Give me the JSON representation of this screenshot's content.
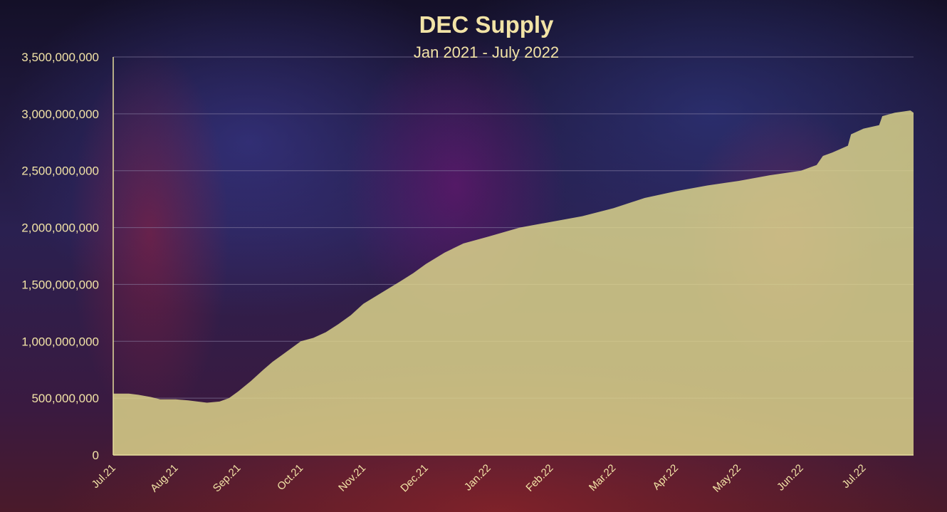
{
  "chart_data": {
    "type": "area",
    "title": "DEC Supply",
    "subtitle": "Jan 2021 - July 2022",
    "xlabel": "",
    "ylabel": "",
    "ylim": [
      0,
      3500000000
    ],
    "ytick_values": [
      0,
      500000000,
      1000000000,
      1500000000,
      2000000000,
      2500000000,
      3000000000,
      3500000000
    ],
    "ytick_labels": [
      "0",
      "500,000,000",
      "1,000,000,000",
      "1,500,000,000",
      "2,000,000,000",
      "2,500,000,000",
      "3,000,000,000",
      "3,500,000,000"
    ],
    "xtick_labels": [
      "Jul.21",
      "Aug.21",
      "Sep.21",
      "Oct.21",
      "Nov.21",
      "Dec.21",
      "Jan.22",
      "Feb.22",
      "Mar.22",
      "Apr.22",
      "May.22",
      "Jun.22",
      "Jul.22"
    ],
    "grid": true,
    "legend": "none",
    "colors": {
      "fill": "#e2da8e",
      "text": "#f2e3a6",
      "grid": "#8c84a6",
      "axis": "#e6dd9c"
    },
    "series": [
      {
        "x": [
          0,
          0.25,
          0.4,
          0.6,
          0.75,
          1.0,
          1.2,
          1.5,
          1.7,
          1.85,
          2.0,
          2.2,
          2.4,
          2.55,
          2.7,
          2.85,
          3.0,
          3.2,
          3.4,
          3.6,
          3.8,
          4.0,
          4.3,
          4.6,
          4.8,
          5.0,
          5.3,
          5.6,
          6.0,
          6.5,
          7.0,
          7.5,
          8.0,
          8.5,
          9.0,
          9.5,
          10.0,
          10.5,
          11.0,
          11.25,
          11.35,
          11.5,
          11.75,
          11.8,
          12.0,
          12.25,
          12.3,
          12.5,
          12.75,
          12.8
        ],
        "y": [
          540000000,
          540000000,
          530000000,
          510000000,
          490000000,
          490000000,
          480000000,
          460000000,
          470000000,
          500000000,
          560000000,
          650000000,
          750000000,
          820000000,
          880000000,
          940000000,
          1000000000,
          1030000000,
          1080000000,
          1150000000,
          1230000000,
          1330000000,
          1430000000,
          1530000000,
          1600000000,
          1680000000,
          1780000000,
          1860000000,
          1920000000,
          2000000000,
          2050000000,
          2100000000,
          2170000000,
          2260000000,
          2320000000,
          2370000000,
          2410000000,
          2460000000,
          2500000000,
          2550000000,
          2630000000,
          2660000000,
          2720000000,
          2820000000,
          2870000000,
          2900000000,
          2980000000,
          3010000000,
          3030000000,
          3010000000
        ]
      }
    ]
  }
}
